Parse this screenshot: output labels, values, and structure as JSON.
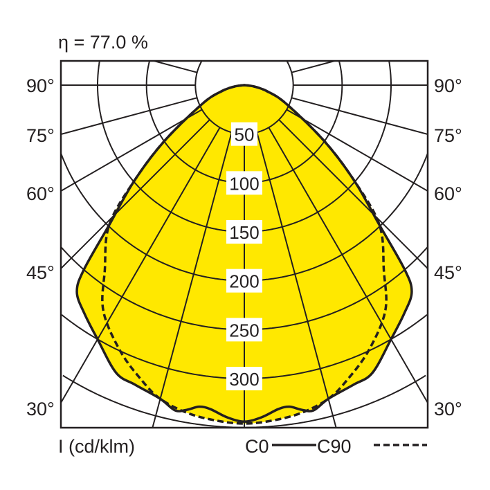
{
  "chart_data": {
    "type": "polar",
    "title": "η = 77.0 %",
    "unit_label": "I (cd/klm)",
    "radial_ticks": [
      50,
      100,
      150,
      200,
      250,
      300
    ],
    "angle_labels": [
      "90°",
      "75°",
      "60°",
      "45°",
      "30°"
    ],
    "angle_grid_step_deg": 15,
    "fill_color": "#FFE800",
    "line_color": "#231f20",
    "series": [
      {
        "name": "C0",
        "style": "solid",
        "points": [
          [
            0,
            344
          ],
          [
            3,
            340
          ],
          [
            6,
            333
          ],
          [
            8,
            332
          ],
          [
            10,
            337
          ],
          [
            12,
            340
          ],
          [
            15,
            332
          ],
          [
            20,
            326
          ],
          [
            24,
            322
          ],
          [
            30,
            300
          ],
          [
            35,
            285
          ],
          [
            39,
            272
          ],
          [
            41,
            250
          ],
          [
            44,
            199
          ],
          [
            49,
            149
          ],
          [
            55,
            100
          ],
          [
            66,
            47
          ],
          [
            75,
            24
          ],
          [
            82,
            10
          ],
          [
            90,
            0
          ]
        ]
      },
      {
        "name": "C90",
        "style": "dashed",
        "points": [
          [
            0,
            346
          ],
          [
            5,
            344
          ],
          [
            10,
            340
          ],
          [
            15,
            332
          ],
          [
            19,
            320
          ],
          [
            25,
            300
          ],
          [
            32,
            272
          ],
          [
            37,
            237
          ],
          [
            44,
            199
          ],
          [
            49,
            149
          ],
          [
            55,
            100
          ],
          [
            66,
            47
          ],
          [
            75,
            24
          ],
          [
            82,
            10
          ],
          [
            90,
            0
          ]
        ]
      }
    ]
  }
}
